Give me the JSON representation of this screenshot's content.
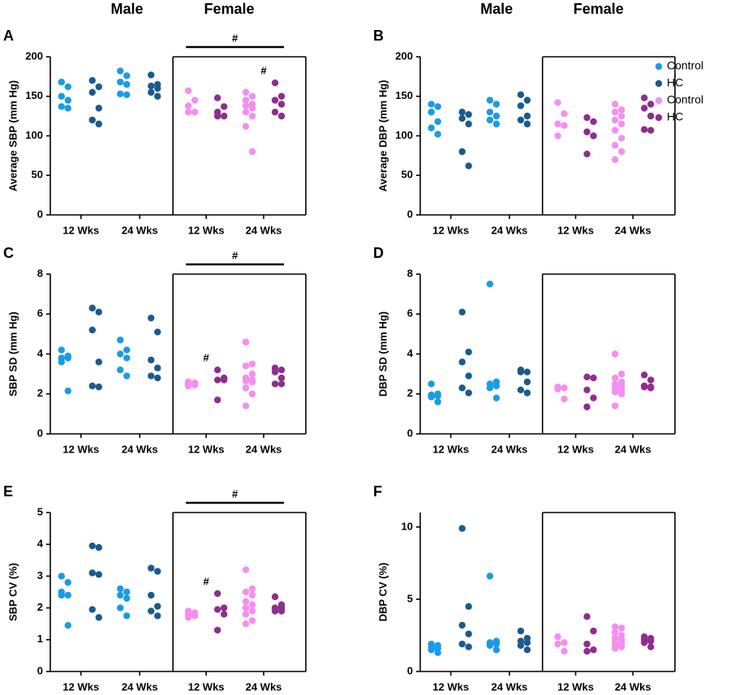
{
  "chart_data": [
    {
      "type": "strip",
      "label": "A",
      "groups": [
        "Male",
        "Female"
      ],
      "ylabel": "Average SBP (mm Hg)",
      "ylim": [
        0,
        200
      ],
      "yticks": [
        0,
        50,
        100,
        150,
        200
      ],
      "categories": [
        "12 Wks",
        "24 Wks",
        "12 Wks",
        "24 Wks"
      ],
      "bracket": "#",
      "annotations": [
        {
          "text": "#",
          "category": 3
        }
      ],
      "series": [
        {
          "name": "Control",
          "color": "#1a9be6",
          "values": [
            [
              168,
              162,
              150,
              145,
              137,
              135
            ],
            [
              182,
              176,
              168,
              165,
              153,
              152
            ],
            null,
            null
          ]
        },
        {
          "name": "HC",
          "color": "#1a5a8f",
          "values": [
            [
              170,
              162,
              155,
              135,
              120,
              115
            ],
            [
              177,
              165,
              163,
              160,
              155,
              150
            ],
            null,
            null
          ]
        },
        {
          "name": "Control",
          "color": "#f48ef0",
          "values": [
            null,
            null,
            [
              157,
              145,
              138,
              130,
              130
            ],
            [
              155,
              150,
              145,
              140,
              138,
              135,
              130,
              125,
              112,
              80
            ]
          ]
        },
        {
          "name": "HC",
          "color": "#8e2e8e",
          "values": [
            null,
            null,
            [
              148,
              137,
              130,
              125,
              125
            ],
            [
              167,
              150,
              145,
              140,
              130,
              125
            ]
          ]
        }
      ]
    },
    {
      "type": "strip",
      "label": "B",
      "groups": [
        "Male",
        "Female"
      ],
      "ylabel": "Average DBP (mm Hg)",
      "ylim": [
        0,
        200
      ],
      "yticks": [
        0,
        50,
        100,
        150,
        200
      ],
      "legend": "right",
      "categories": [
        "12 Wks",
        "24 Wks",
        "12 Wks",
        "24 Wks"
      ],
      "series": [
        {
          "name": "Control",
          "color": "#1a9be6",
          "values": [
            [
              140,
              137,
              130,
              118,
              110,
              102
            ],
            [
              145,
              140,
              130,
              125,
              120,
              115
            ],
            null,
            null
          ]
        },
        {
          "name": "HC",
          "color": "#1a5a8f",
          "values": [
            [
              130,
              127,
              122,
              115,
              80,
              62
            ],
            [
              152,
              145,
              138,
              125,
              120,
              115
            ],
            null,
            null
          ]
        },
        {
          "name": "Control",
          "color": "#f48ef0",
          "values": [
            null,
            null,
            [
              142,
              128,
              115,
              113,
              100
            ],
            [
              140,
              133,
              130,
              125,
              120,
              115,
              107,
              97,
              88,
              80,
              70
            ]
          ]
        },
        {
          "name": "HC",
          "color": "#8e2e8e",
          "values": [
            null,
            null,
            [
              123,
              118,
              105,
              100,
              77
            ],
            [
              148,
              140,
              135,
              125,
              108,
              107
            ]
          ]
        }
      ]
    },
    {
      "type": "strip",
      "label": "C",
      "ylabel": "SBP SD (mm Hg)",
      "ylim": [
        0,
        8
      ],
      "yticks": [
        0,
        2,
        4,
        6,
        8
      ],
      "categories": [
        "12 Wks",
        "24 Wks",
        "12 Wks",
        "24 Wks"
      ],
      "bracket": "#",
      "annotations": [
        {
          "text": "#",
          "category": 2
        }
      ],
      "series": [
        {
          "name": "Control",
          "color": "#1a9be6",
          "values": [
            [
              4.2,
              3.9,
              3.8,
              3.8,
              3.6,
              2.15
            ],
            [
              4.7,
              4.2,
              4.0,
              3.8,
              3.2,
              2.9
            ],
            null,
            null
          ]
        },
        {
          "name": "HC",
          "color": "#1a5a8f",
          "values": [
            [
              6.3,
              6.1,
              5.2,
              3.6,
              2.4,
              2.35
            ],
            [
              5.8,
              5.1,
              3.7,
              3.3,
              2.9,
              2.8
            ],
            null,
            null
          ]
        },
        {
          "name": "Control",
          "color": "#f48ef0",
          "values": [
            null,
            null,
            [
              2.6,
              2.55,
              2.5,
              2.45,
              2.4
            ],
            [
              4.6,
              3.5,
              3.4,
              3.0,
              2.8,
              2.7,
              2.65,
              2.6,
              2.3,
              2.0,
              1.4
            ]
          ]
        },
        {
          "name": "HC",
          "color": "#8e2e8e",
          "values": [
            null,
            null,
            [
              3.2,
              2.8,
              2.7,
              2.7,
              1.7
            ],
            [
              3.3,
              3.2,
              3.1,
              2.8,
              2.5,
              2.5
            ]
          ]
        }
      ]
    },
    {
      "type": "strip",
      "label": "D",
      "ylabel": "DBP SD (mm Hg)",
      "ylim": [
        0,
        8
      ],
      "yticks": [
        0,
        2,
        4,
        6,
        8
      ],
      "categories": [
        "12 Wks",
        "24 Wks",
        "12 Wks",
        "24 Wks"
      ],
      "series": [
        {
          "name": "Control",
          "color": "#1a9be6",
          "values": [
            [
              2.5,
              2.0,
              1.95,
              1.9,
              1.85,
              1.6
            ],
            [
              7.5,
              2.6,
              2.5,
              2.4,
              2.3,
              1.8
            ],
            null,
            null
          ]
        },
        {
          "name": "HC",
          "color": "#1a5a8f",
          "values": [
            [
              6.1,
              4.1,
              3.6,
              2.9,
              2.3,
              2.05
            ],
            [
              3.2,
              3.1,
              3.1,
              2.6,
              2.2,
              2.05
            ],
            null,
            null
          ]
        },
        {
          "name": "Control",
          "color": "#f48ef0",
          "values": [
            null,
            null,
            [
              2.35,
              2.3,
              2.25,
              1.75
            ],
            [
              4.0,
              3.0,
              2.8,
              2.6,
              2.5,
              2.4,
              2.3,
              2.2,
              2.1,
              2.0,
              1.4
            ]
          ]
        },
        {
          "name": "HC",
          "color": "#8e2e8e",
          "values": [
            null,
            null,
            [
              2.85,
              2.8,
              2.2,
              1.8,
              1.35
            ],
            [
              2.95,
              2.7,
              2.4,
              2.35,
              2.35,
              2.3
            ]
          ]
        }
      ]
    },
    {
      "type": "strip",
      "label": "E",
      "ylabel": "SBP CV (%)",
      "ylim": [
        0,
        5
      ],
      "yticks": [
        0,
        1,
        2,
        3,
        4,
        5
      ],
      "categories": [
        "12 Wks",
        "24 Wks",
        "12 Wks",
        "24 Wks"
      ],
      "bracket": "#",
      "annotations": [
        {
          "text": "#",
          "category": 2
        }
      ],
      "series": [
        {
          "name": "Control",
          "color": "#1a9be6",
          "values": [
            [
              3.0,
              2.8,
              2.5,
              2.4,
              2.4,
              1.45
            ],
            [
              2.6,
              2.5,
              2.4,
              2.3,
              2.0,
              1.75
            ],
            null,
            null
          ]
        },
        {
          "name": "HC",
          "color": "#1a5a8f",
          "values": [
            [
              3.95,
              3.9,
              3.1,
              3.05,
              1.95,
              1.7
            ],
            [
              3.25,
              3.15,
              2.4,
              2.05,
              1.9,
              1.75
            ],
            null,
            null
          ]
        },
        {
          "name": "Control",
          "color": "#f48ef0",
          "values": [
            null,
            null,
            [
              1.9,
              1.85,
              1.8,
              1.75,
              1.7
            ],
            [
              3.2,
              2.6,
              2.5,
              2.4,
              2.2,
              2.1,
              2.0,
              1.9,
              1.8,
              1.6,
              1.5
            ]
          ]
        },
        {
          "name": "HC",
          "color": "#8e2e8e",
          "values": [
            null,
            null,
            [
              2.45,
              2.0,
              1.95,
              1.8,
              1.3
            ],
            [
              2.35,
              2.1,
              2.0,
              2.0,
              1.9,
              1.9
            ]
          ]
        }
      ]
    },
    {
      "type": "strip",
      "label": "F",
      "ylabel": "DBP CV (%)",
      "ylim": [
        0,
        11
      ],
      "yticks": [
        0,
        5,
        10
      ],
      "categories": [
        "12 Wks",
        "24 Wks",
        "12 Wks",
        "24 Wks"
      ],
      "series": [
        {
          "name": "Control",
          "color": "#1a9be6",
          "values": [
            [
              1.9,
              1.8,
              1.7,
              1.6,
              1.5,
              1.3
            ],
            [
              6.6,
              2.1,
              2.0,
              1.9,
              1.8,
              1.5
            ],
            null,
            null
          ]
        },
        {
          "name": "HC",
          "color": "#1a5a8f",
          "values": [
            [
              9.9,
              4.5,
              3.2,
              2.6,
              1.9,
              1.7
            ],
            [
              2.8,
              2.3,
              2.1,
              2.0,
              1.8,
              1.5
            ],
            null,
            null
          ]
        },
        {
          "name": "Control",
          "color": "#f48ef0",
          "values": [
            null,
            null,
            [
              2.4,
              2.0,
              1.9,
              1.4
            ],
            [
              3.1,
              3.0,
              2.7,
              2.5,
              2.3,
              2.2,
              2.0,
              1.9,
              1.8,
              1.7,
              1.6
            ]
          ]
        },
        {
          "name": "HC",
          "color": "#8e2e8e",
          "values": [
            null,
            null,
            [
              3.8,
              2.8,
              1.9,
              1.5,
              1.4
            ],
            [
              2.4,
              2.3,
              2.2,
              2.1,
              2.0,
              1.7
            ]
          ]
        }
      ]
    }
  ]
}
